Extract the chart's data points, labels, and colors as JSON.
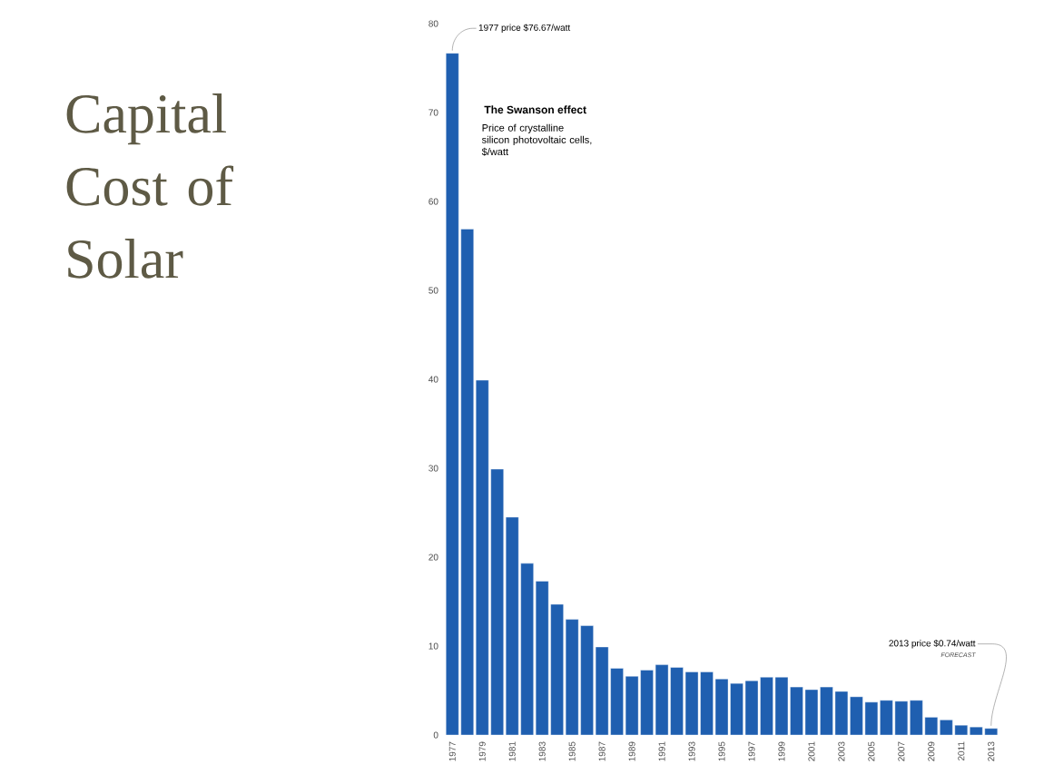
{
  "chart_data": {
    "type": "bar",
    "title": "Capital Cost of Solar",
    "subtitle": "The Swanson effect",
    "ylabel": "Price of crystalline silicon photovoltaic cells, $/watt",
    "categories": [
      "1977",
      null,
      "1979",
      null,
      "1981",
      null,
      "1983",
      null,
      "1985",
      null,
      "1987",
      null,
      "1989",
      null,
      "1991",
      null,
      "1993",
      null,
      "1995",
      null,
      "1997",
      null,
      "1999",
      null,
      "2001",
      null,
      "2003",
      null,
      "2005",
      null,
      "2007",
      null,
      "2009",
      null,
      "2011",
      null,
      "2013"
    ],
    "values": [
      76.67,
      56.9,
      39.9,
      29.9,
      24.5,
      19.3,
      17.3,
      14.7,
      13.0,
      12.3,
      9.9,
      7.5,
      6.6,
      7.3,
      7.9,
      7.6,
      7.1,
      7.1,
      6.3,
      5.8,
      6.1,
      6.5,
      6.5,
      5.4,
      5.1,
      5.4,
      4.9,
      4.3,
      3.7,
      3.9,
      3.8,
      3.9,
      2.0,
      1.7,
      1.1,
      0.9,
      0.74
    ],
    "color": "#1f5fb0",
    "ylim": [
      0,
      80
    ],
    "yticks": [
      0,
      10,
      20,
      30,
      40,
      50,
      60,
      70,
      80
    ],
    "annotations": [
      {
        "text": "1977 price $76.67/watt",
        "x": "1977",
        "y": 76.67
      },
      {
        "text": "2013 price $0.74/watt",
        "x": "2013",
        "y": 0.74
      },
      "FORECAST"
    ]
  }
}
